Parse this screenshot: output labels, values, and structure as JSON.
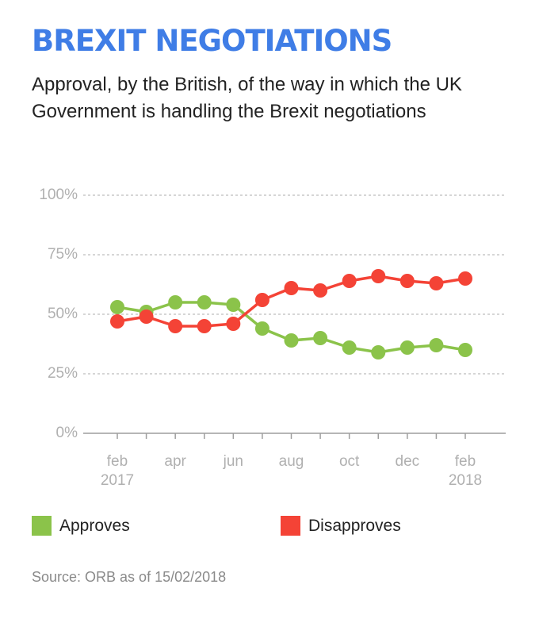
{
  "header": {
    "title": "BREXIT NEGOTIATIONS",
    "subtitle": "Approval, by the British, of the way in which the UK Government is handling the Brexit negotiations"
  },
  "legend": {
    "items": [
      {
        "label": "Approves",
        "color": "#8bc34a"
      },
      {
        "label": "Disapproves",
        "color": "#f44336"
      }
    ]
  },
  "footer": {
    "source": "Source: ORB as of 15/02/2018"
  },
  "chart_data": {
    "type": "line",
    "title": "BREXIT NEGOTIATIONS",
    "subtitle": "Approval, by the British, of the way in which the UK Government is handling the Brexit negotiations",
    "xlabel": "",
    "ylabel": "",
    "x": [
      "2017-02",
      "2017-03",
      "2017-04",
      "2017-05",
      "2017-06",
      "2017-07",
      "2017-08",
      "2017-09",
      "2017-10",
      "2017-11",
      "2017-12",
      "2018-01",
      "2018-02"
    ],
    "x_tick_labels": [
      {
        "x": "2017-02",
        "lines": [
          "feb",
          "2017"
        ]
      },
      {
        "x": "2017-04",
        "lines": [
          "apr"
        ]
      },
      {
        "x": "2017-06",
        "lines": [
          "jun"
        ]
      },
      {
        "x": "2017-08",
        "lines": [
          "aug"
        ]
      },
      {
        "x": "2017-10",
        "lines": [
          "oct"
        ]
      },
      {
        "x": "2017-12",
        "lines": [
          "dec"
        ]
      },
      {
        "x": "2018-02",
        "lines": [
          "feb",
          "2018"
        ]
      }
    ],
    "y_ticks": [
      0,
      25,
      50,
      75,
      100
    ],
    "y_tick_labels": [
      "0%",
      "25%",
      "50%",
      "75%",
      "100%"
    ],
    "ylim": [
      0,
      100
    ],
    "grid": true,
    "legend_position": "bottom",
    "series": [
      {
        "name": "Approves",
        "color": "#8bc34a",
        "values": [
          53,
          51,
          55,
          55,
          54,
          44,
          39,
          40,
          36,
          34,
          36,
          37,
          35
        ]
      },
      {
        "name": "Disapproves",
        "color": "#f44336",
        "values": [
          47,
          49,
          45,
          45,
          46,
          56,
          61,
          60,
          64,
          66,
          64,
          63,
          65
        ]
      }
    ]
  }
}
